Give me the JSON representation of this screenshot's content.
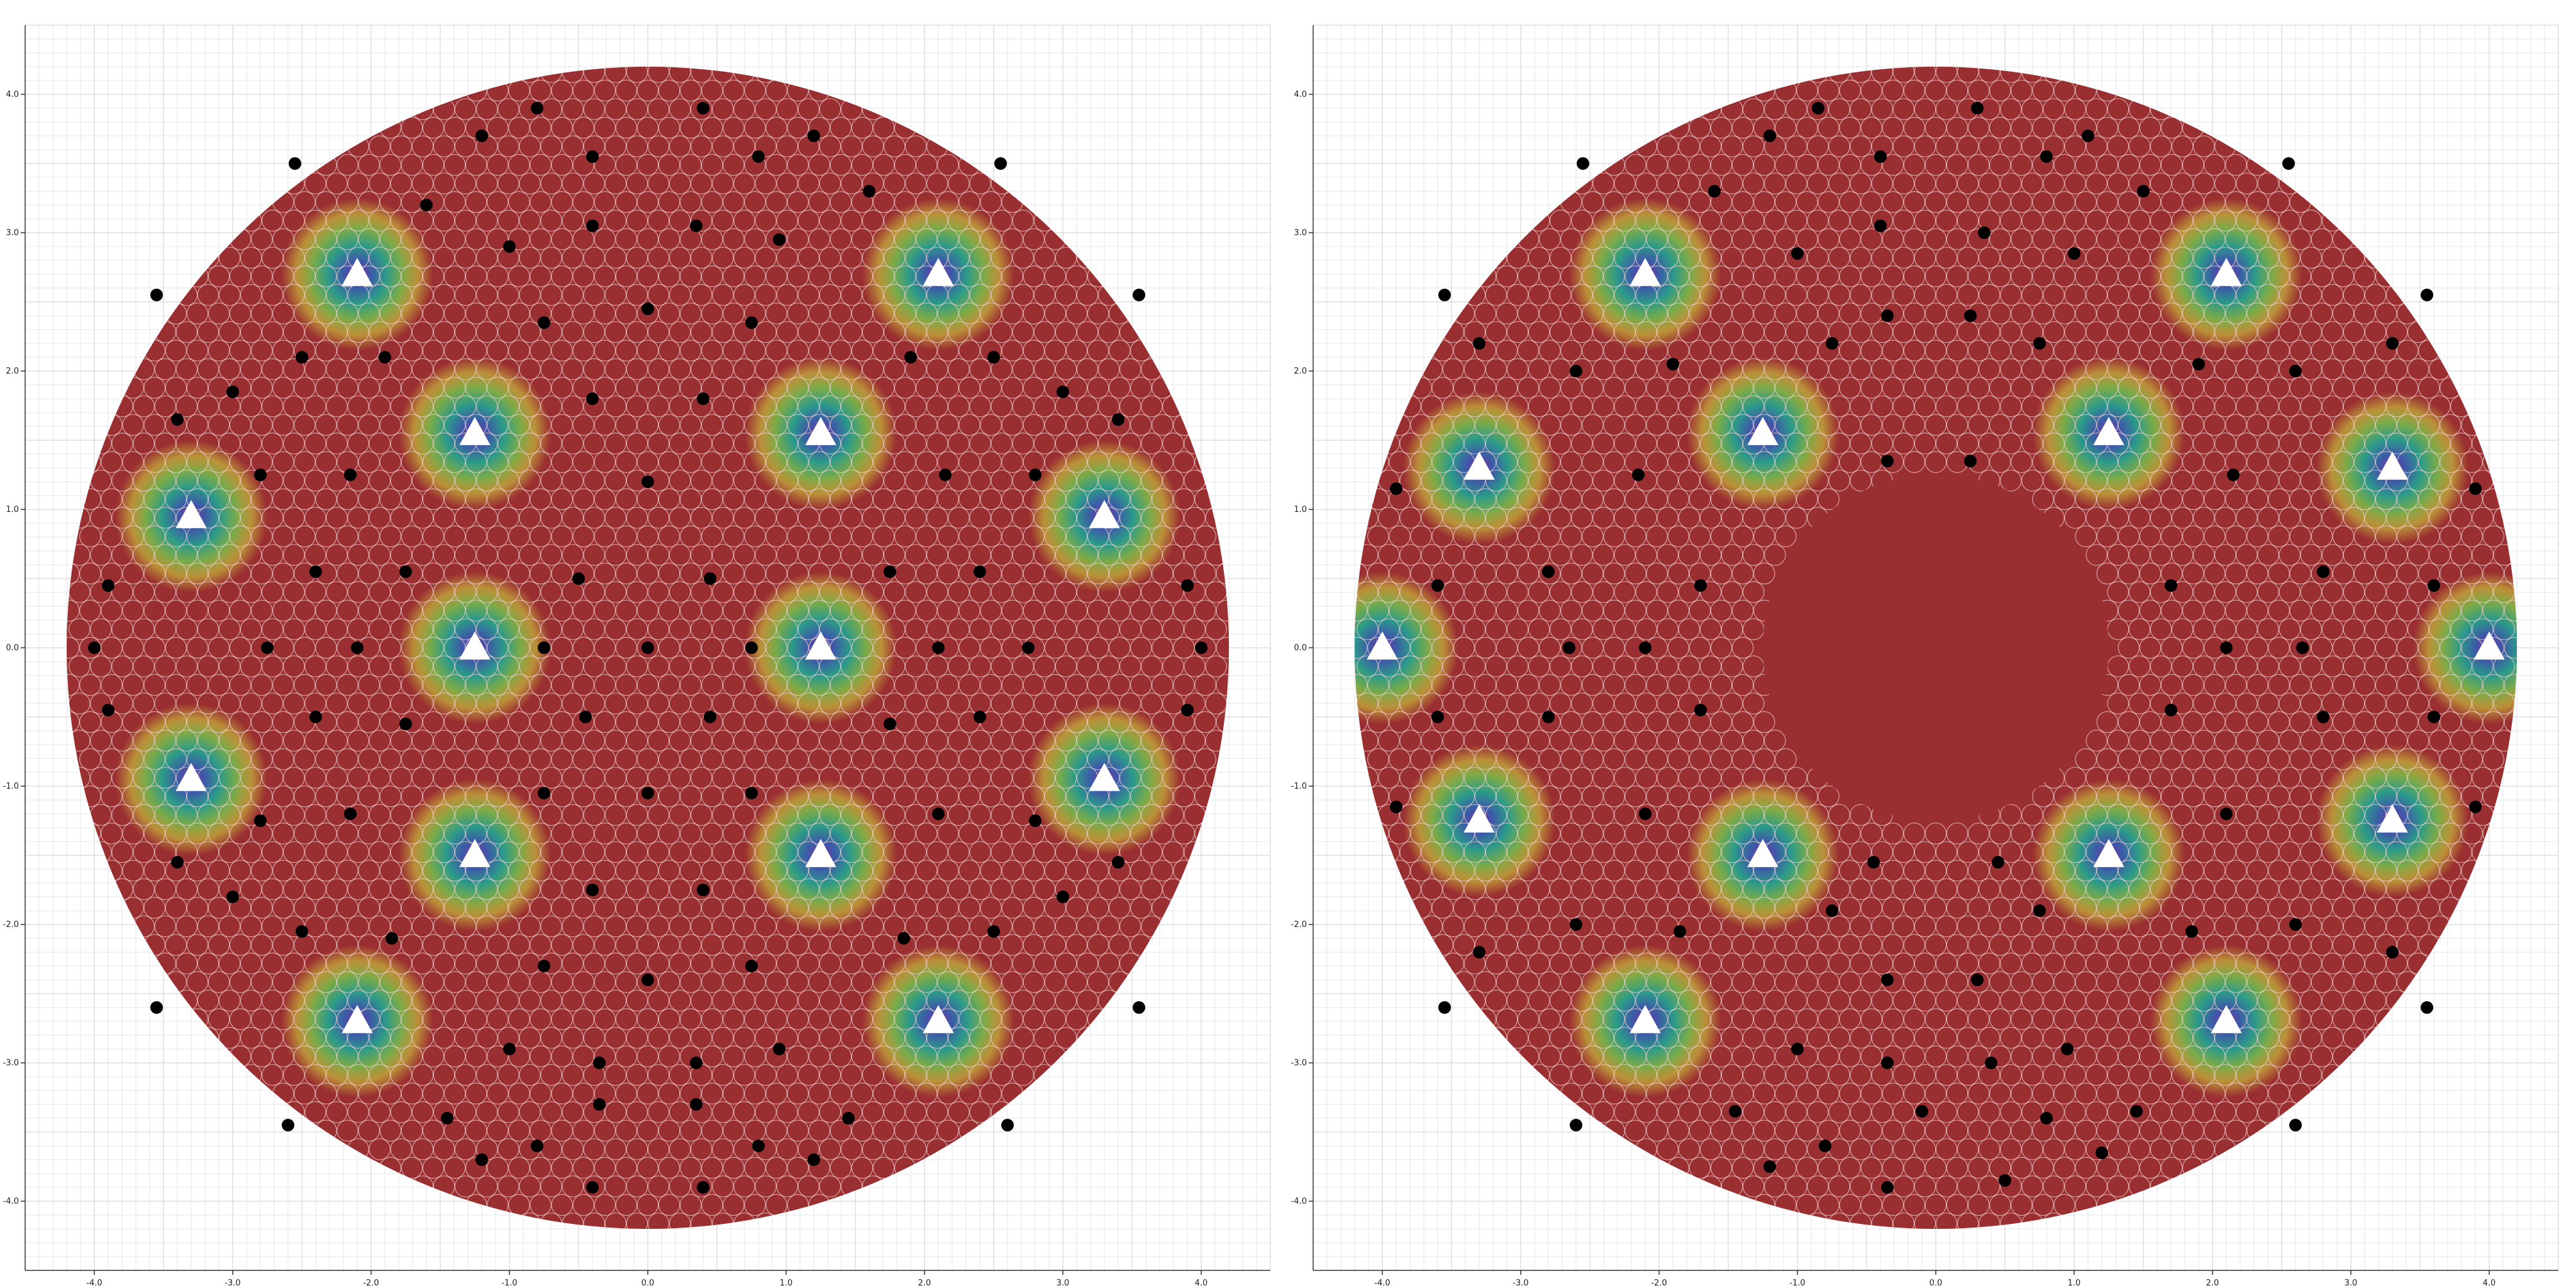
{
  "chart_data": [
    {
      "type": "scatter",
      "title": "",
      "xlabel": "",
      "ylabel": "",
      "xlim": [
        -4.5,
        4.5
      ],
      "ylim": [
        -4.5,
        4.5
      ],
      "grid": true,
      "xticks": [
        -4.0,
        -3.0,
        -2.0,
        -1.0,
        0.0,
        1.0,
        2.0,
        3.0,
        4.0
      ],
      "yticks": [
        4.0,
        3.0,
        2.0,
        1.0,
        0.0,
        -1.0,
        -2.0,
        -3.0,
        -4.0
      ],
      "xtick_labels": [
        "-4.0",
        "-3.0",
        "-2.0",
        "-1.0",
        "0.0",
        "1.0",
        "2.0",
        "3.0",
        "4.0"
      ],
      "ytick_labels": [
        "4.0",
        "3.0",
        "2.0",
        "1.0",
        "0.0",
        "-1.0",
        "-2.0",
        "-3.0",
        "-4.0"
      ],
      "domain_radius": 4.2,
      "inner_hole": null,
      "background_color": "#9a2f31",
      "cell_outline_color": "#f2d3d3",
      "sources": [
        {
          "x": -2.1,
          "y": 2.7
        },
        {
          "x": 2.1,
          "y": 2.7
        },
        {
          "x": -1.25,
          "y": 1.55
        },
        {
          "x": 1.25,
          "y": 1.55
        },
        {
          "x": -3.3,
          "y": 0.95
        },
        {
          "x": 3.3,
          "y": 0.95
        },
        {
          "x": -1.25,
          "y": 0.0
        },
        {
          "x": 1.25,
          "y": 0.0
        },
        {
          "x": -3.3,
          "y": -0.95
        },
        {
          "x": 3.3,
          "y": -0.95
        },
        {
          "x": -1.25,
          "y": -1.5
        },
        {
          "x": 1.25,
          "y": -1.5
        },
        {
          "x": -2.1,
          "y": -2.7
        },
        {
          "x": 2.1,
          "y": -2.7
        }
      ],
      "receivers": [
        {
          "x": -1.2,
          "y": 3.7
        },
        {
          "x": -0.8,
          "y": 3.9
        },
        {
          "x": -0.4,
          "y": 3.55
        },
        {
          "x": 0.4,
          "y": 3.9
        },
        {
          "x": 0.8,
          "y": 3.55
        },
        {
          "x": 1.2,
          "y": 3.7
        },
        {
          "x": -1.6,
          "y": 3.2
        },
        {
          "x": 1.6,
          "y": 3.3
        },
        {
          "x": -0.4,
          "y": 3.05
        },
        {
          "x": 0.35,
          "y": 3.05
        },
        {
          "x": -1.0,
          "y": 2.9
        },
        {
          "x": 0.95,
          "y": 2.95
        },
        {
          "x": 0.0,
          "y": 2.45
        },
        {
          "x": -0.75,
          "y": 2.35
        },
        {
          "x": 0.75,
          "y": 2.35
        },
        {
          "x": -1.9,
          "y": 2.1
        },
        {
          "x": 1.9,
          "y": 2.1
        },
        {
          "x": -2.5,
          "y": 2.1
        },
        {
          "x": 2.5,
          "y": 2.1
        },
        {
          "x": -3.0,
          "y": 1.85
        },
        {
          "x": 3.0,
          "y": 1.85
        },
        {
          "x": -0.4,
          "y": 1.8
        },
        {
          "x": 0.4,
          "y": 1.8
        },
        {
          "x": -3.4,
          "y": 1.65
        },
        {
          "x": 3.4,
          "y": 1.65
        },
        {
          "x": -2.15,
          "y": 1.25
        },
        {
          "x": 2.15,
          "y": 1.25
        },
        {
          "x": 0.0,
          "y": 1.2
        },
        {
          "x": -2.8,
          "y": 1.25
        },
        {
          "x": 2.8,
          "y": 1.25
        },
        {
          "x": -0.5,
          "y": 0.5
        },
        {
          "x": 0.45,
          "y": 0.5
        },
        {
          "x": -1.75,
          "y": 0.55
        },
        {
          "x": 1.75,
          "y": 0.55
        },
        {
          "x": -2.4,
          "y": 0.55
        },
        {
          "x": 2.4,
          "y": 0.55
        },
        {
          "x": -3.9,
          "y": 0.45
        },
        {
          "x": 3.9,
          "y": 0.45
        },
        {
          "x": 0.0,
          "y": 0.0
        },
        {
          "x": -0.75,
          "y": 0.0
        },
        {
          "x": 0.75,
          "y": 0.0
        },
        {
          "x": -2.1,
          "y": 0.0
        },
        {
          "x": 2.1,
          "y": 0.0
        },
        {
          "x": -2.75,
          "y": 0.0
        },
        {
          "x": 2.75,
          "y": 0.0
        },
        {
          "x": -4.0,
          "y": 0.0
        },
        {
          "x": 4.0,
          "y": 0.0
        },
        {
          "x": -0.45,
          "y": -0.5
        },
        {
          "x": 0.45,
          "y": -0.5
        },
        {
          "x": -1.75,
          "y": -0.55
        },
        {
          "x": 1.75,
          "y": -0.55
        },
        {
          "x": -2.4,
          "y": -0.5
        },
        {
          "x": 2.4,
          "y": -0.5
        },
        {
          "x": -3.9,
          "y": -0.45
        },
        {
          "x": 3.9,
          "y": -0.45
        },
        {
          "x": 0.0,
          "y": -1.05
        },
        {
          "x": -0.75,
          "y": -1.05
        },
        {
          "x": 0.75,
          "y": -1.05
        },
        {
          "x": -2.15,
          "y": -1.2
        },
        {
          "x": 2.1,
          "y": -1.2
        },
        {
          "x": -2.8,
          "y": -1.25
        },
        {
          "x": 2.8,
          "y": -1.25
        },
        {
          "x": -0.4,
          "y": -1.75
        },
        {
          "x": 0.4,
          "y": -1.75
        },
        {
          "x": -1.85,
          "y": -2.1
        },
        {
          "x": 1.85,
          "y": -2.1
        },
        {
          "x": -3.0,
          "y": -1.8
        },
        {
          "x": 3.0,
          "y": -1.8
        },
        {
          "x": -2.5,
          "y": -2.05
        },
        {
          "x": 2.5,
          "y": -2.05
        },
        {
          "x": -3.4,
          "y": -1.55
        },
        {
          "x": 3.4,
          "y": -1.55
        },
        {
          "x": 0.0,
          "y": -2.4
        },
        {
          "x": -0.75,
          "y": -2.3
        },
        {
          "x": 0.75,
          "y": -2.3
        },
        {
          "x": -1.0,
          "y": -2.9
        },
        {
          "x": 0.95,
          "y": -2.9
        },
        {
          "x": -0.35,
          "y": -3.0
        },
        {
          "x": 0.35,
          "y": -3.0
        },
        {
          "x": -1.45,
          "y": -3.4
        },
        {
          "x": 1.45,
          "y": -3.4
        },
        {
          "x": -0.35,
          "y": -3.3
        },
        {
          "x": 0.35,
          "y": -3.3
        },
        {
          "x": -0.8,
          "y": -3.6
        },
        {
          "x": 0.8,
          "y": -3.6
        },
        {
          "x": -1.2,
          "y": -3.7
        },
        {
          "x": 1.2,
          "y": -3.7
        },
        {
          "x": -0.4,
          "y": -3.9
        },
        {
          "x": 0.4,
          "y": -3.9
        },
        {
          "x": -2.6,
          "y": -3.45
        },
        {
          "x": 2.6,
          "y": -3.45
        },
        {
          "x": -3.55,
          "y": -2.6
        },
        {
          "x": 3.55,
          "y": -2.6
        },
        {
          "x": -3.55,
          "y": 2.55
        },
        {
          "x": 3.55,
          "y": 2.55
        },
        {
          "x": -2.55,
          "y": 3.5
        },
        {
          "x": 2.55,
          "y": 3.5
        }
      ]
    },
    {
      "type": "scatter",
      "title": "",
      "xlabel": "",
      "ylabel": "",
      "xlim": [
        -4.5,
        4.5
      ],
      "ylim": [
        -4.5,
        4.5
      ],
      "grid": true,
      "xticks": [
        -4.0,
        -3.0,
        -2.0,
        -1.0,
        0.0,
        1.0,
        2.0,
        3.0,
        4.0
      ],
      "yticks": [
        4.0,
        3.0,
        2.0,
        1.0,
        0.0,
        -1.0,
        -2.0,
        -3.0,
        -4.0
      ],
      "xtick_labels": [
        "-4.0",
        "-3.0",
        "-2.0",
        "-1.0",
        "0.0",
        "1.0",
        "2.0",
        "3.0",
        "4.0"
      ],
      "ytick_labels": [
        "4.0",
        "3.0",
        "2.0",
        "1.0",
        "0.0",
        "-1.0",
        "-2.0",
        "-3.0",
        "-4.0"
      ],
      "domain_radius": 4.2,
      "inner_hole": {
        "x": 0.0,
        "y": 0.0,
        "radius": 1.25
      },
      "background_color": "#9a2f31",
      "cell_outline_color": "#f2d3d3",
      "sources": [
        {
          "x": -2.1,
          "y": 2.7
        },
        {
          "x": 2.1,
          "y": 2.7
        },
        {
          "x": -1.25,
          "y": 1.55
        },
        {
          "x": 1.25,
          "y": 1.55
        },
        {
          "x": -3.3,
          "y": 1.3
        },
        {
          "x": 3.3,
          "y": 1.3
        },
        {
          "x": -4.0,
          "y": 0.0
        },
        {
          "x": 4.0,
          "y": 0.0
        },
        {
          "x": -3.3,
          "y": -1.25
        },
        {
          "x": 3.3,
          "y": -1.25
        },
        {
          "x": -1.25,
          "y": -1.5
        },
        {
          "x": 1.25,
          "y": -1.5
        },
        {
          "x": -2.1,
          "y": -2.7
        },
        {
          "x": 2.1,
          "y": -2.7
        }
      ],
      "receivers": [
        {
          "x": -1.2,
          "y": 3.7
        },
        {
          "x": -0.85,
          "y": 3.9
        },
        {
          "x": -0.4,
          "y": 3.55
        },
        {
          "x": 0.3,
          "y": 3.9
        },
        {
          "x": 0.8,
          "y": 3.55
        },
        {
          "x": 1.1,
          "y": 3.7
        },
        {
          "x": -1.6,
          "y": 3.3
        },
        {
          "x": 1.5,
          "y": 3.3
        },
        {
          "x": -0.4,
          "y": 3.05
        },
        {
          "x": 0.35,
          "y": 3.0
        },
        {
          "x": -1.0,
          "y": 2.85
        },
        {
          "x": 1.0,
          "y": 2.85
        },
        {
          "x": -0.35,
          "y": 2.4
        },
        {
          "x": 0.25,
          "y": 2.4
        },
        {
          "x": -0.75,
          "y": 2.2
        },
        {
          "x": 0.75,
          "y": 2.2
        },
        {
          "x": -1.9,
          "y": 2.05
        },
        {
          "x": 1.9,
          "y": 2.05
        },
        {
          "x": -2.6,
          "y": 2.0
        },
        {
          "x": 2.6,
          "y": 2.0
        },
        {
          "x": -3.3,
          "y": 2.2
        },
        {
          "x": 3.3,
          "y": 2.2
        },
        {
          "x": -0.35,
          "y": 1.35
        },
        {
          "x": 0.25,
          "y": 1.35
        },
        {
          "x": -2.15,
          "y": 1.25
        },
        {
          "x": 2.15,
          "y": 1.25
        },
        {
          "x": -2.8,
          "y": 0.55
        },
        {
          "x": 2.8,
          "y": 0.55
        },
        {
          "x": -1.7,
          "y": 0.45
        },
        {
          "x": 1.7,
          "y": 0.45
        },
        {
          "x": -2.1,
          "y": 0.0
        },
        {
          "x": 2.1,
          "y": 0.0
        },
        {
          "x": -2.65,
          "y": 0.0
        },
        {
          "x": 2.65,
          "y": 0.0
        },
        {
          "x": -3.6,
          "y": 0.45
        },
        {
          "x": 3.6,
          "y": 0.45
        },
        {
          "x": -3.6,
          "y": -0.5
        },
        {
          "x": 3.6,
          "y": -0.5
        },
        {
          "x": -1.7,
          "y": -0.45
        },
        {
          "x": 1.7,
          "y": -0.45
        },
        {
          "x": -2.8,
          "y": -0.5
        },
        {
          "x": 2.8,
          "y": -0.5
        },
        {
          "x": -2.1,
          "y": -1.2
        },
        {
          "x": 2.1,
          "y": -1.2
        },
        {
          "x": -0.45,
          "y": -1.55
        },
        {
          "x": 0.45,
          "y": -1.55
        },
        {
          "x": -0.75,
          "y": -1.9
        },
        {
          "x": 0.75,
          "y": -1.9
        },
        {
          "x": -1.85,
          "y": -2.05
        },
        {
          "x": 1.85,
          "y": -2.05
        },
        {
          "x": -2.6,
          "y": -2.0
        },
        {
          "x": 2.6,
          "y": -2.0
        },
        {
          "x": -3.3,
          "y": -2.2
        },
        {
          "x": 3.3,
          "y": -2.2
        },
        {
          "x": -0.35,
          "y": -2.4
        },
        {
          "x": 0.3,
          "y": -2.4
        },
        {
          "x": -1.0,
          "y": -2.9
        },
        {
          "x": 0.95,
          "y": -2.9
        },
        {
          "x": -0.35,
          "y": -3.0
        },
        {
          "x": 0.4,
          "y": -3.0
        },
        {
          "x": -1.45,
          "y": -3.35
        },
        {
          "x": 1.45,
          "y": -3.35
        },
        {
          "x": -0.1,
          "y": -3.35
        },
        {
          "x": 0.8,
          "y": -3.4
        },
        {
          "x": -0.8,
          "y": -3.6
        },
        {
          "x": 1.2,
          "y": -3.65
        },
        {
          "x": -1.2,
          "y": -3.75
        },
        {
          "x": 0.5,
          "y": -3.85
        },
        {
          "x": -0.35,
          "y": -3.9
        },
        {
          "x": -2.6,
          "y": -3.45
        },
        {
          "x": 2.6,
          "y": -3.45
        },
        {
          "x": -3.55,
          "y": -2.6
        },
        {
          "x": 3.55,
          "y": -2.6
        },
        {
          "x": -3.55,
          "y": 2.55
        },
        {
          "x": 3.55,
          "y": 2.55
        },
        {
          "x": -2.55,
          "y": 3.5
        },
        {
          "x": 2.55,
          "y": 3.5
        },
        {
          "x": -3.9,
          "y": 1.15
        },
        {
          "x": 3.9,
          "y": 1.15
        },
        {
          "x": -3.9,
          "y": -1.15
        },
        {
          "x": 3.9,
          "y": -1.15
        }
      ]
    }
  ]
}
